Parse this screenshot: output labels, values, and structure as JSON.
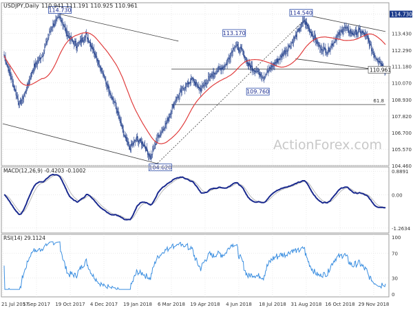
{
  "chart_data": [
    {
      "type": "candlestick",
      "title": "USDJPY,Daily",
      "ohlc_readout": "110.941 111.191 110.925 110.961",
      "ylim": [
        104.46,
        115.5
      ],
      "yticks": [
        104.46,
        105.57,
        106.7,
        107.82,
        108.93,
        110.07,
        111.18,
        112.29,
        113.43,
        114.73
      ],
      "ytick_labels": [
        "104.460",
        "105.570",
        "106.700",
        "107.820",
        "108.930",
        "110.070",
        "111.180",
        "112.290",
        "113.430",
        "114.730"
      ],
      "price_badge": "114.730",
      "last_price": 110.961,
      "last_price_label": "110.961",
      "x_labels": [
        "21 Jul 2017",
        "5 Sep 2017",
        "19 Oct 2017",
        "4 Dec 2017",
        "19 Jan 2018",
        "6 Mar 2018",
        "19 Apr 2018",
        "4 Jun 2018",
        "18 Jul 2018",
        "31 Aug 2018",
        "16 Oct 2018",
        "29 Nov 2018"
      ],
      "callouts": [
        {
          "text": "114.730",
          "value": 114.73
        },
        {
          "text": "104.620",
          "value": 104.62
        },
        {
          "text": "113.170",
          "value": 113.17
        },
        {
          "text": "114.540",
          "value": 114.54
        },
        {
          "text": "109.760",
          "value": 109.76
        }
      ],
      "fib_label": "61.8",
      "fib_level": 108.6,
      "support_level": 111.0,
      "anchors": [
        {
          "x": 0,
          "y": 111.9
        },
        {
          "x": 10,
          "y": 110.4
        },
        {
          "x": 22,
          "y": 108.6
        },
        {
          "x": 30,
          "y": 109.4
        },
        {
          "x": 42,
          "y": 111.1
        },
        {
          "x": 55,
          "y": 112.0
        },
        {
          "x": 68,
          "y": 113.9
        },
        {
          "x": 80,
          "y": 114.55
        },
        {
          "x": 92,
          "y": 113.2
        },
        {
          "x": 104,
          "y": 112.6
        },
        {
          "x": 118,
          "y": 113.3
        },
        {
          "x": 130,
          "y": 112.1
        },
        {
          "x": 145,
          "y": 110.2
        },
        {
          "x": 160,
          "y": 108.5
        },
        {
          "x": 172,
          "y": 106.5
        },
        {
          "x": 180,
          "y": 105.6
        },
        {
          "x": 190,
          "y": 106.3
        },
        {
          "x": 200,
          "y": 105.9
        },
        {
          "x": 210,
          "y": 105.0
        },
        {
          "x": 220,
          "y": 106.4
        },
        {
          "x": 232,
          "y": 107.3
        },
        {
          "x": 245,
          "y": 108.8
        },
        {
          "x": 258,
          "y": 109.8
        },
        {
          "x": 270,
          "y": 110.3
        },
        {
          "x": 282,
          "y": 109.6
        },
        {
          "x": 294,
          "y": 110.4
        },
        {
          "x": 305,
          "y": 110.9
        },
        {
          "x": 318,
          "y": 111.3
        },
        {
          "x": 330,
          "y": 112.6
        },
        {
          "x": 342,
          "y": 112.2
        },
        {
          "x": 350,
          "y": 111.3
        },
        {
          "x": 362,
          "y": 110.9
        },
        {
          "x": 372,
          "y": 110.5
        },
        {
          "x": 384,
          "y": 111.2
        },
        {
          "x": 396,
          "y": 111.8
        },
        {
          "x": 408,
          "y": 112.5
        },
        {
          "x": 420,
          "y": 113.4
        },
        {
          "x": 430,
          "y": 114.3
        },
        {
          "x": 440,
          "y": 113.5
        },
        {
          "x": 452,
          "y": 112.5
        },
        {
          "x": 464,
          "y": 112.2
        },
        {
          "x": 476,
          "y": 113.1
        },
        {
          "x": 488,
          "y": 113.8
        },
        {
          "x": 500,
          "y": 113.4
        },
        {
          "x": 510,
          "y": 113.6
        },
        {
          "x": 520,
          "y": 113.2
        },
        {
          "x": 530,
          "y": 112.0
        },
        {
          "x": 537,
          "y": 111.6
        },
        {
          "x": 547,
          "y": 110.96
        }
      ]
    },
    {
      "type": "line",
      "title": "MACD(12,26,9) -0.4203 -0.1002",
      "ylim": [
        -1.45,
        1.05
      ],
      "yticks": [
        0.8891,
        0.0,
        -1.2634
      ],
      "ytick_labels": [
        "0.8891",
        "0.00",
        "-1.2634"
      ]
    },
    {
      "type": "line",
      "title": "RSI(14) 29.1124",
      "ylim": [
        0,
        100
      ],
      "yticks": [
        100,
        70,
        30,
        0
      ],
      "ytick_labels": [
        "100",
        "70",
        "30",
        "0"
      ]
    }
  ],
  "watermark": "ActionForex.com",
  "colors": {
    "bull": "#1f3d8a",
    "bear": "#1f3d8a",
    "ma": "#e03c3c",
    "macd": "#1a2a8f",
    "signal": "#b8b8b8",
    "rsi": "#3a8ee0",
    "channel": "#3a3a3a",
    "grid": "#dcdcdc",
    "badge_bg": "#1a3a8a"
  }
}
